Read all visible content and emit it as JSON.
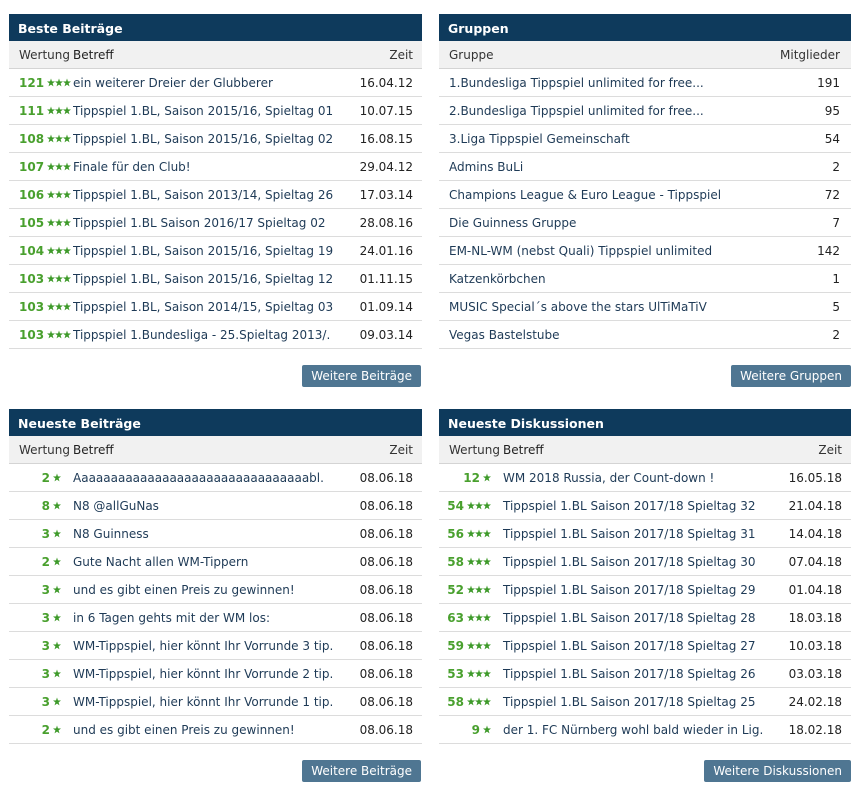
{
  "best_posts": {
    "title": "Beste Beiträge",
    "col_rating": "Wertung",
    "col_subject": "Betreff",
    "col_time": "Zeit",
    "rows": [
      {
        "score": "121",
        "stars": 3,
        "title": "ein weiterer Dreier der Glubberer",
        "date": "16.04.12"
      },
      {
        "score": "111",
        "stars": 3,
        "title": "Tippspiel 1.BL, Saison 2015/16, Spieltag 01",
        "date": "10.07.15"
      },
      {
        "score": "108",
        "stars": 3,
        "title": "Tippspiel 1.BL, Saison 2015/16, Spieltag 02",
        "date": "16.08.15"
      },
      {
        "score": "107",
        "stars": 3,
        "title": "Finale für den Club!",
        "date": "29.04.12"
      },
      {
        "score": "106",
        "stars": 3,
        "title": "Tippspiel 1.BL, Saison 2013/14, Spieltag 26",
        "date": "17.03.14"
      },
      {
        "score": "105",
        "stars": 3,
        "title": "Tippspiel 1.BL Saison 2016/17 Spieltag 02",
        "date": "28.08.16"
      },
      {
        "score": "104",
        "stars": 3,
        "title": "Tippspiel 1.BL, Saison 2015/16, Spieltag 19",
        "date": "24.01.16"
      },
      {
        "score": "103",
        "stars": 3,
        "title": "Tippspiel 1.BL, Saison 2015/16, Spieltag 12",
        "date": "01.11.15"
      },
      {
        "score": "103",
        "stars": 3,
        "title": "Tippspiel 1.BL, Saison 2014/15, Spieltag 03",
        "date": "01.09.14"
      },
      {
        "score": "103",
        "stars": 3,
        "title": "Tippspiel 1.Bundesliga - 25.Spieltag 2013/.",
        "date": "09.03.14"
      }
    ],
    "more_label": "Weitere Beiträge"
  },
  "groups": {
    "title": "Gruppen",
    "col_group": "Gruppe",
    "col_members": "Mitglieder",
    "rows": [
      {
        "name": "1.Bundesliga Tippspiel unlimited for free...",
        "members": "191"
      },
      {
        "name": "2.Bundesliga Tippspiel unlimited for free...",
        "members": "95"
      },
      {
        "name": "3.Liga Tippspiel Gemeinschaft",
        "members": "54"
      },
      {
        "name": "Admins BuLi",
        "members": "2"
      },
      {
        "name": "Champions League & Euro League - Tippspiel",
        "members": "72"
      },
      {
        "name": "Die Guinness Gruppe",
        "members": "7"
      },
      {
        "name": "EM-NL-WM (nebst Quali) Tippspiel unlimited",
        "members": "142"
      },
      {
        "name": "Katzenkörbchen",
        "members": "1"
      },
      {
        "name": "MUSIC Special´s above the stars UlTiMaTiV",
        "members": "5"
      },
      {
        "name": "Vegas Bastelstube",
        "members": "2"
      }
    ],
    "more_label": "Weitere Gruppen"
  },
  "newest_posts": {
    "title": "Neueste Beiträge",
    "col_rating": "Wertung",
    "col_subject": "Betreff",
    "col_time": "Zeit",
    "rows": [
      {
        "score": "2",
        "stars": 1,
        "title": "Aaaaaaaaaaaaaaaaaaaaaaaaaaaaaaaabl.",
        "date": "08.06.18"
      },
      {
        "score": "8",
        "stars": 1,
        "title": "N8 @allGuNas",
        "date": "08.06.18"
      },
      {
        "score": "3",
        "stars": 1,
        "title": "N8 Guinness",
        "date": "08.06.18"
      },
      {
        "score": "2",
        "stars": 1,
        "title": "Gute Nacht allen WM-Tippern",
        "date": "08.06.18"
      },
      {
        "score": "3",
        "stars": 1,
        "title": "und es gibt einen Preis zu gewinnen!",
        "date": "08.06.18"
      },
      {
        "score": "3",
        "stars": 1,
        "title": "in 6 Tagen gehts mit der WM los:",
        "date": "08.06.18"
      },
      {
        "score": "3",
        "stars": 1,
        "title": "WM-Tippspiel, hier könnt Ihr Vorrunde 3 tip.",
        "date": "08.06.18"
      },
      {
        "score": "3",
        "stars": 1,
        "title": "WM-Tippspiel, hier könnt Ihr Vorrunde 2 tip.",
        "date": "08.06.18"
      },
      {
        "score": "3",
        "stars": 1,
        "title": "WM-Tippspiel, hier könnt Ihr Vorrunde 1 tip.",
        "date": "08.06.18"
      },
      {
        "score": "2",
        "stars": 1,
        "title": "und es gibt einen Preis zu gewinnen!",
        "date": "08.06.18"
      }
    ],
    "more_label": "Weitere Beiträge"
  },
  "newest_discussions": {
    "title": "Neueste Diskussionen",
    "col_rating": "Wertung",
    "col_subject": "Betreff",
    "col_time": "Zeit",
    "rows": [
      {
        "score": "12",
        "stars": 1,
        "title": "WM 2018 Russia, der Count-down !",
        "date": "16.05.18"
      },
      {
        "score": "54",
        "stars": 3,
        "title": "Tippspiel 1.BL Saison 2017/18 Spieltag 32",
        "date": "21.04.18"
      },
      {
        "score": "56",
        "stars": 3,
        "title": "Tippspiel 1.BL Saison 2017/18 Spieltag 31",
        "date": "14.04.18"
      },
      {
        "score": "58",
        "stars": 3,
        "title": "Tippspiel 1.BL Saison 2017/18 Spieltag 30",
        "date": "07.04.18"
      },
      {
        "score": "52",
        "stars": 3,
        "title": "Tippspiel 1.BL Saison 2017/18 Spieltag 29",
        "date": "01.04.18"
      },
      {
        "score": "63",
        "stars": 3,
        "title": "Tippspiel 1.BL Saison 2017/18 Spieltag 28",
        "date": "18.03.18"
      },
      {
        "score": "59",
        "stars": 3,
        "title": "Tippspiel 1.BL Saison 2017/18 Spieltag 27",
        "date": "10.03.18"
      },
      {
        "score": "53",
        "stars": 3,
        "title": "Tippspiel 1.BL Saison 2017/18 Spieltag 26",
        "date": "03.03.18"
      },
      {
        "score": "58",
        "stars": 3,
        "title": "Tippspiel 1.BL Saison 2017/18 Spieltag 25",
        "date": "24.02.18"
      },
      {
        "score": "9",
        "stars": 1,
        "title": "der 1. FC Nürnberg wohl bald wieder in Lig.",
        "date": "18.02.18"
      }
    ],
    "more_label": "Weitere Diskussionen"
  },
  "colors": {
    "header_bg": "#0e3a5c",
    "score_green": "#49a02e",
    "star_green": "#3e9a2a",
    "button_bg": "#4f7692"
  }
}
